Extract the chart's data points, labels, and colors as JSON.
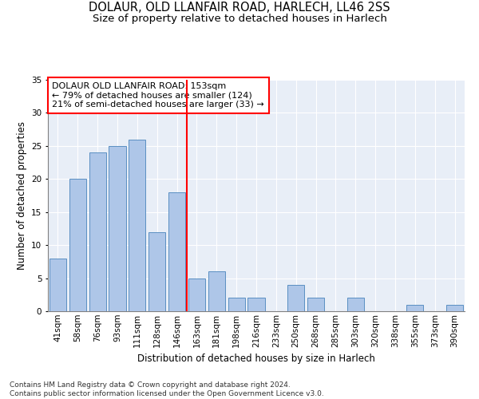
{
  "title": "DOLAUR, OLD LLANFAIR ROAD, HARLECH, LL46 2SS",
  "subtitle": "Size of property relative to detached houses in Harlech",
  "xlabel": "Distribution of detached houses by size in Harlech",
  "ylabel": "Number of detached properties",
  "categories": [
    "41sqm",
    "58sqm",
    "76sqm",
    "93sqm",
    "111sqm",
    "128sqm",
    "146sqm",
    "163sqm",
    "181sqm",
    "198sqm",
    "216sqm",
    "233sqm",
    "250sqm",
    "268sqm",
    "285sqm",
    "303sqm",
    "320sqm",
    "338sqm",
    "355sqm",
    "373sqm",
    "390sqm"
  ],
  "values": [
    8,
    20,
    24,
    25,
    26,
    12,
    18,
    5,
    6,
    2,
    2,
    0,
    4,
    2,
    0,
    2,
    0,
    0,
    1,
    0,
    1
  ],
  "bar_color": "#aec6e8",
  "bar_edge_color": "#5a8fc2",
  "vline_color": "red",
  "vline_x": 6.5,
  "annotation_text": "DOLAUR OLD LLANFAIR ROAD: 153sqm\n← 79% of detached houses are smaller (124)\n21% of semi-detached houses are larger (33) →",
  "annotation_box_color": "white",
  "annotation_box_edge_color": "red",
  "ylim": [
    0,
    35
  ],
  "yticks": [
    0,
    5,
    10,
    15,
    20,
    25,
    30,
    35
  ],
  "bg_color": "#e8eef7",
  "footer": "Contains HM Land Registry data © Crown copyright and database right 2024.\nContains public sector information licensed under the Open Government Licence v3.0.",
  "title_fontsize": 10.5,
  "subtitle_fontsize": 9.5,
  "xlabel_fontsize": 8.5,
  "ylabel_fontsize": 8.5,
  "tick_fontsize": 7.5,
  "annotation_fontsize": 8,
  "footer_fontsize": 6.5
}
